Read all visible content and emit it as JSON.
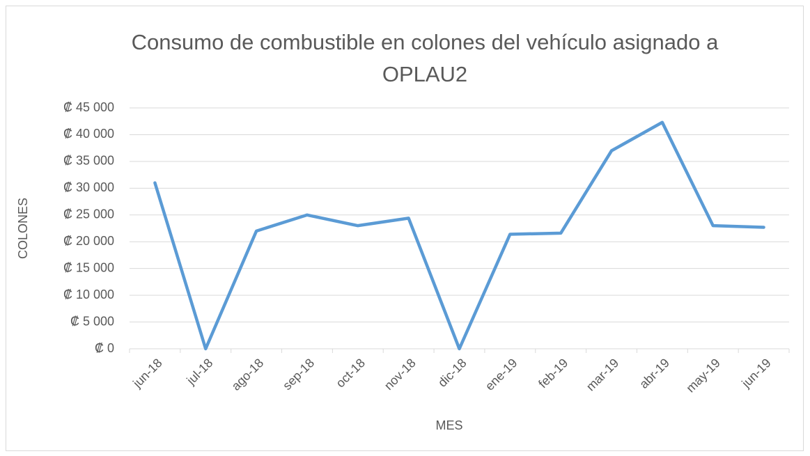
{
  "chart_data": {
    "type": "line",
    "title": "Consumo de combustible en colones del vehículo asignado a OPLAU2",
    "x_label": "MES",
    "y_label": "COLONES",
    "categories": [
      "jun-18",
      "jul-18",
      "ago-18",
      "sep-18",
      "oct-18",
      "nov-18",
      "dic-18",
      "ene-19",
      "feb-19",
      "mar-19",
      "abr-19",
      "may-19",
      "jun-19"
    ],
    "series": [
      {
        "name": "Consumo",
        "color": "#5b9bd5",
        "values": [
          31000,
          0,
          22000,
          25000,
          23000,
          24400,
          0,
          21400,
          21600,
          37000,
          42300,
          23000,
          22700
        ]
      }
    ],
    "ylim": [
      0,
      45000
    ],
    "yticks": [
      {
        "value": 0,
        "label": "₡ 0"
      },
      {
        "value": 5000,
        "label": "₡ 5 000"
      },
      {
        "value": 10000,
        "label": "₡ 10 000"
      },
      {
        "value": 15000,
        "label": "₡ 15 000"
      },
      {
        "value": 20000,
        "label": "₡ 20 000"
      },
      {
        "value": 25000,
        "label": "₡ 25 000"
      },
      {
        "value": 30000,
        "label": "₡ 30 000"
      },
      {
        "value": 35000,
        "label": "₡ 35 000"
      },
      {
        "value": 40000,
        "label": "₡ 40 000"
      },
      {
        "value": 45000,
        "label": "₡ 45 000"
      }
    ],
    "grid": true
  }
}
